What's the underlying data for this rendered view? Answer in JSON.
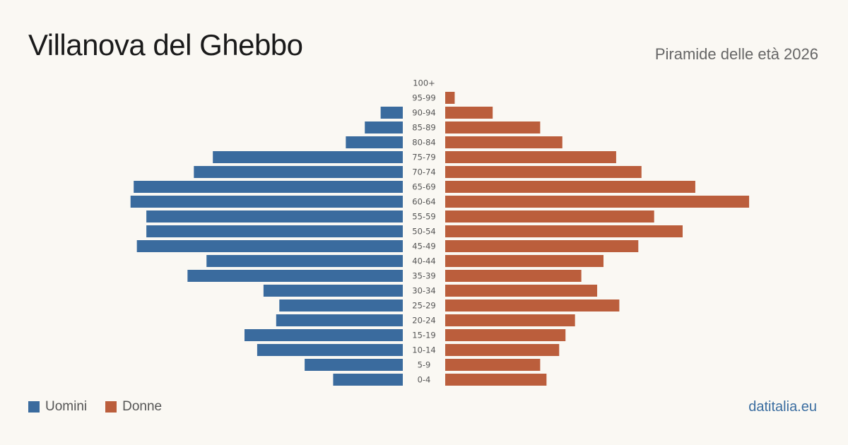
{
  "header": {
    "title": "Villanova del Ghebbo",
    "subtitle": "Piramide delle età 2026"
  },
  "legend": {
    "men_label": "Uomini",
    "women_label": "Donne"
  },
  "brand": "datitalia.eu",
  "colors": {
    "men": "#3a6b9e",
    "women": "#bb5e3c",
    "background": "#faf8f3"
  },
  "chart_data": {
    "type": "bar",
    "orientation": "horizontal-pyramid",
    "categories": [
      "100+",
      "95-99",
      "90-94",
      "85-89",
      "80-84",
      "75-79",
      "70-74",
      "65-69",
      "60-64",
      "55-59",
      "50-54",
      "45-49",
      "40-44",
      "35-39",
      "30-34",
      "25-29",
      "20-24",
      "15-19",
      "10-14",
      "5-9",
      "0-4"
    ],
    "series": [
      {
        "name": "Uomini",
        "values": [
          0,
          0,
          7,
          12,
          18,
          60,
          66,
          85,
          86,
          81,
          81,
          84,
          62,
          68,
          44,
          39,
          40,
          50,
          46,
          31,
          22
        ]
      },
      {
        "name": "Donne",
        "values": [
          0,
          3,
          15,
          30,
          37,
          54,
          62,
          79,
          96,
          66,
          75,
          61,
          50,
          43,
          48,
          55,
          41,
          38,
          36,
          30,
          32
        ]
      }
    ],
    "grid": false,
    "legend_position": "bottom-left"
  }
}
